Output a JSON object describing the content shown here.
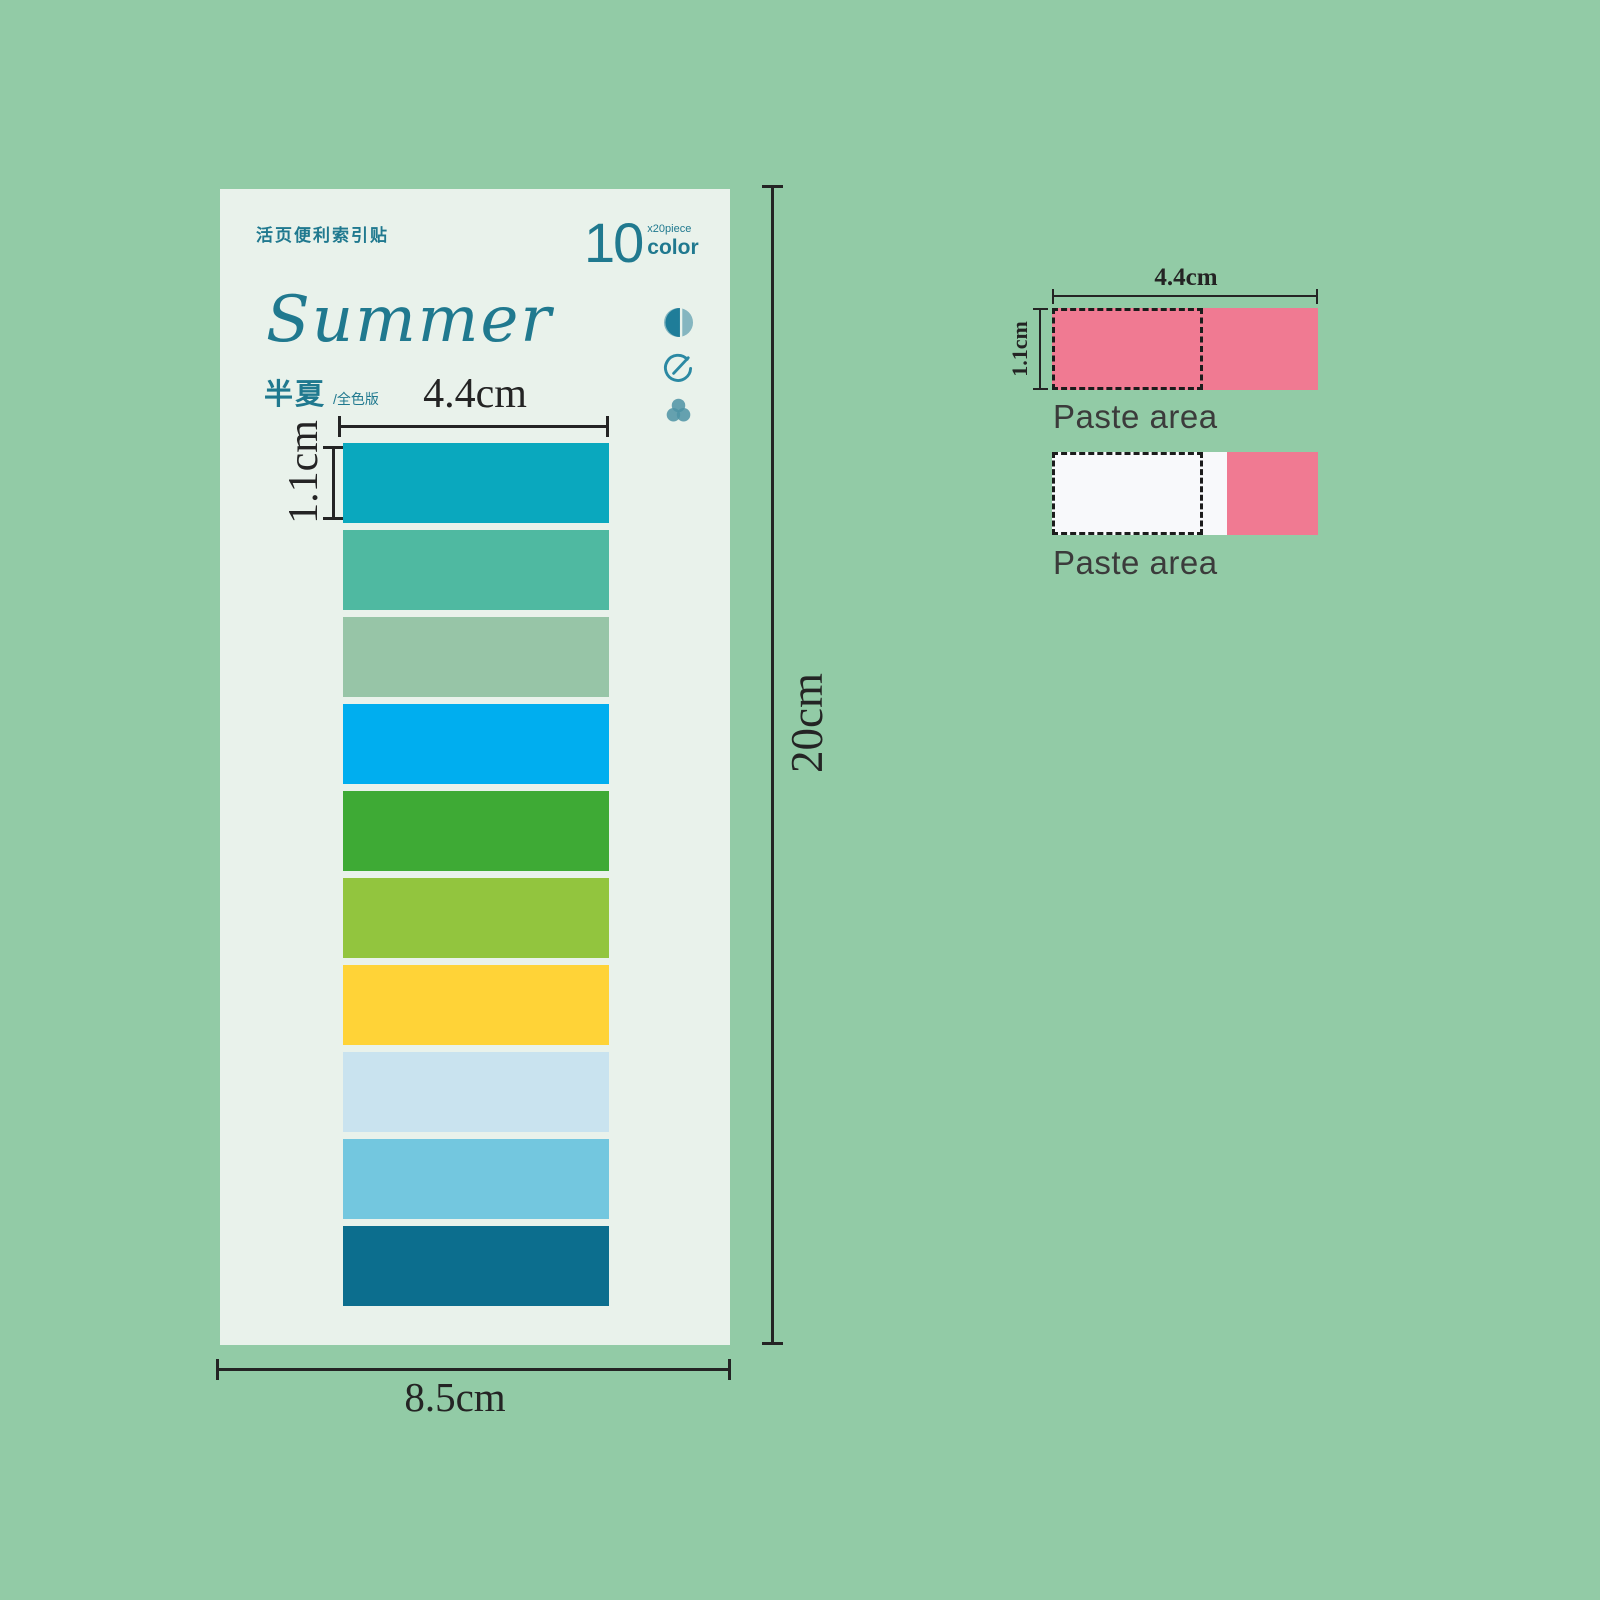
{
  "colors": {
    "bg": "#92CBA6",
    "card": "#E9F2EB",
    "teal": "#20798F",
    "ink": "#242424",
    "pink": "#F07A92",
    "paper": "#F8F9FB",
    "label": "#3B3B3B"
  },
  "card": {
    "cn_label": "活页便利索引贴",
    "count": {
      "number": "10",
      "piece": "x20piece",
      "color_word": "color"
    },
    "title": "Summer",
    "subtitle_cn": "半夏",
    "subtitle_note": "/全色版",
    "icons": [
      "contrast-icon",
      "write-icon",
      "color-mix-icon"
    ],
    "swatches": [
      {
        "name": "teal-cyan",
        "hex": "#0AA8BE"
      },
      {
        "name": "sea-green",
        "hex": "#4FB9A1"
      },
      {
        "name": "sage-green",
        "hex": "#97C5A7"
      },
      {
        "name": "azure-blue",
        "hex": "#00AEEF"
      },
      {
        "name": "green",
        "hex": "#3EAA35"
      },
      {
        "name": "lime-green",
        "hex": "#92C53E"
      },
      {
        "name": "yellow",
        "hex": "#FFD337"
      },
      {
        "name": "pale-blue",
        "hex": "#C9E3EF"
      },
      {
        "name": "sky-blue",
        "hex": "#73C7DF"
      },
      {
        "name": "dark-teal",
        "hex": "#0C6E8E"
      }
    ]
  },
  "dimensions": {
    "tab_width": "4.4cm",
    "tab_height": "1.1cm",
    "sheet_height": "20cm",
    "sheet_width": "8.5cm"
  },
  "diagram": {
    "width_label": "4.4cm",
    "height_label": "1.1cm",
    "paste_label_top": "Paste area",
    "paste_label_bottom": "Paste area"
  }
}
